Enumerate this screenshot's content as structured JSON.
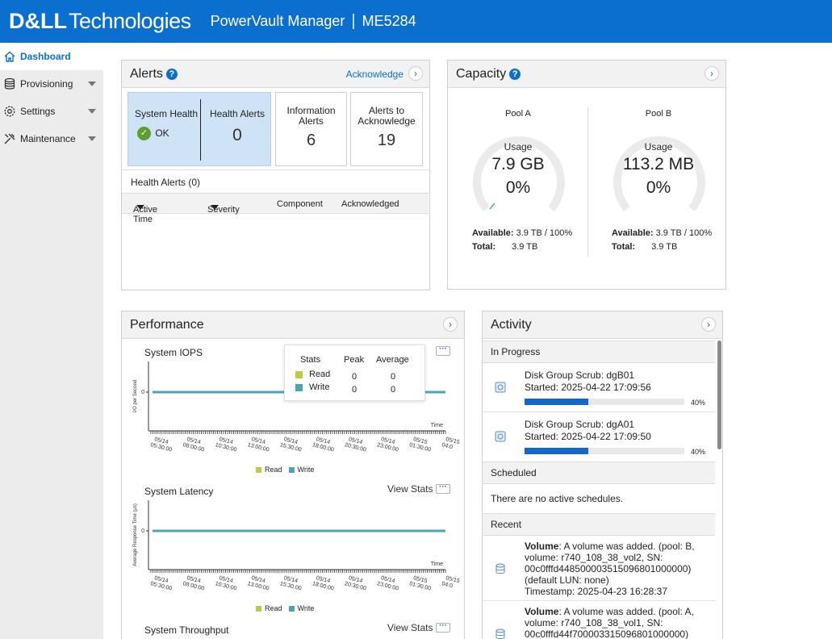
{
  "header": {
    "logo_dell": "D&LL",
    "logo_tech": "Technologies",
    "product": "PowerVault Manager",
    "separator": "|",
    "model": "ME5284"
  },
  "sidebar": {
    "items": [
      {
        "label": "Dashboard",
        "icon": "home-icon",
        "active": true
      },
      {
        "label": "Provisioning",
        "icon": "database-icon"
      },
      {
        "label": "Settings",
        "icon": "gear-icon"
      },
      {
        "label": "Maintenance",
        "icon": "tools-icon"
      }
    ]
  },
  "alerts": {
    "title": "Alerts",
    "acknowledge": "Acknowledge",
    "system_health_label": "System Health",
    "system_health_value": "OK",
    "health_alerts_label": "Health Alerts",
    "health_alerts_value": "0",
    "info_alerts_label": "Information Alerts",
    "info_alerts_value": "6",
    "to_ack_label": "Alerts to Acknowledge",
    "to_ack_value": "19",
    "table_title": "Health Alerts (0)",
    "columns": [
      "Active Time",
      "Severity",
      "Component",
      "Acknowledged"
    ]
  },
  "capacity": {
    "title": "Capacity",
    "pools": [
      {
        "name": "Pool A",
        "usage_label": "Usage",
        "usage": "7.9 GB",
        "percent": "0%",
        "fraction": 0.0,
        "available_label": "Available:",
        "available": "3.9 TB / 100%",
        "total_label": "Total:",
        "total": "3.9 TB"
      },
      {
        "name": "Pool B",
        "usage_label": "Usage",
        "usage": "113.2 MB",
        "percent": "0%",
        "fraction": 0.0,
        "available_label": "Available:",
        "available": "3.9 TB / 100%",
        "total_label": "Total:",
        "total": "3.9 TB"
      }
    ]
  },
  "performance": {
    "title": "Performance",
    "view_stats": "View Stats",
    "stats_popup": {
      "headers": [
        "Stats",
        "Peak",
        "Average"
      ],
      "rows": [
        {
          "name": "Read",
          "peak": "0",
          "average": "0"
        },
        {
          "name": "Write",
          "peak": "0",
          "average": "0"
        }
      ]
    },
    "legend": [
      "Read",
      "Write"
    ],
    "time_label": "Time",
    "time_ticks": [
      "05/14 05:30:00",
      "05/14 08:00:00",
      "05/14 10:30:00",
      "05/14 13:00:00",
      "05/14 15:30:00",
      "05/14 18:00:00",
      "05/14 20:30:00",
      "05/14 23:00:00",
      "05/15 01:30:00",
      "05/15 04:0"
    ],
    "charts": [
      {
        "title": "System IOPS",
        "ylabel": "I/O per Second",
        "ytick": "0"
      },
      {
        "title": "System Latency",
        "ylabel": "Average Response Time (μs)",
        "ytick": "0"
      },
      {
        "title": "System Throughput"
      }
    ]
  },
  "activity": {
    "title": "Activity",
    "in_progress": "In Progress",
    "tasks": [
      {
        "title": "Disk Group Scrub: dgB01",
        "started": "Started: 2025-04-22 17:09:56",
        "progress": 0.4,
        "percent": "40%"
      },
      {
        "title": "Disk Group Scrub: dgA01",
        "started": "Started: 2025-04-22 17:09:50",
        "progress": 0.4,
        "percent": "40%"
      }
    ],
    "scheduled": "Scheduled",
    "no_schedules": "There are no active schedules.",
    "recent": "Recent",
    "recent_items": [
      {
        "kind": "Volume",
        "text": ": A volume was added. (pool: B,",
        "line2": "volume: r740_108_38_vol2, SN:",
        "line3": "00c0fffd448500003515096801000000)",
        "line4": "(default LUN: none)",
        "line5": "Timestamp: 2025-04-23 16:28:37"
      },
      {
        "kind": "Volume",
        "text": ": A volume was added. (pool: A,",
        "line2": "volume: r740_108_38_vol1, SN:",
        "line3": "00c0fffd44f700003315096801000000)"
      }
    ]
  },
  "colors": {
    "brand": "#0b6fcf",
    "read": "#b6cf3c",
    "write": "#4aa6b0",
    "progress": "#1566c8",
    "ok": "#5e9e2f"
  }
}
